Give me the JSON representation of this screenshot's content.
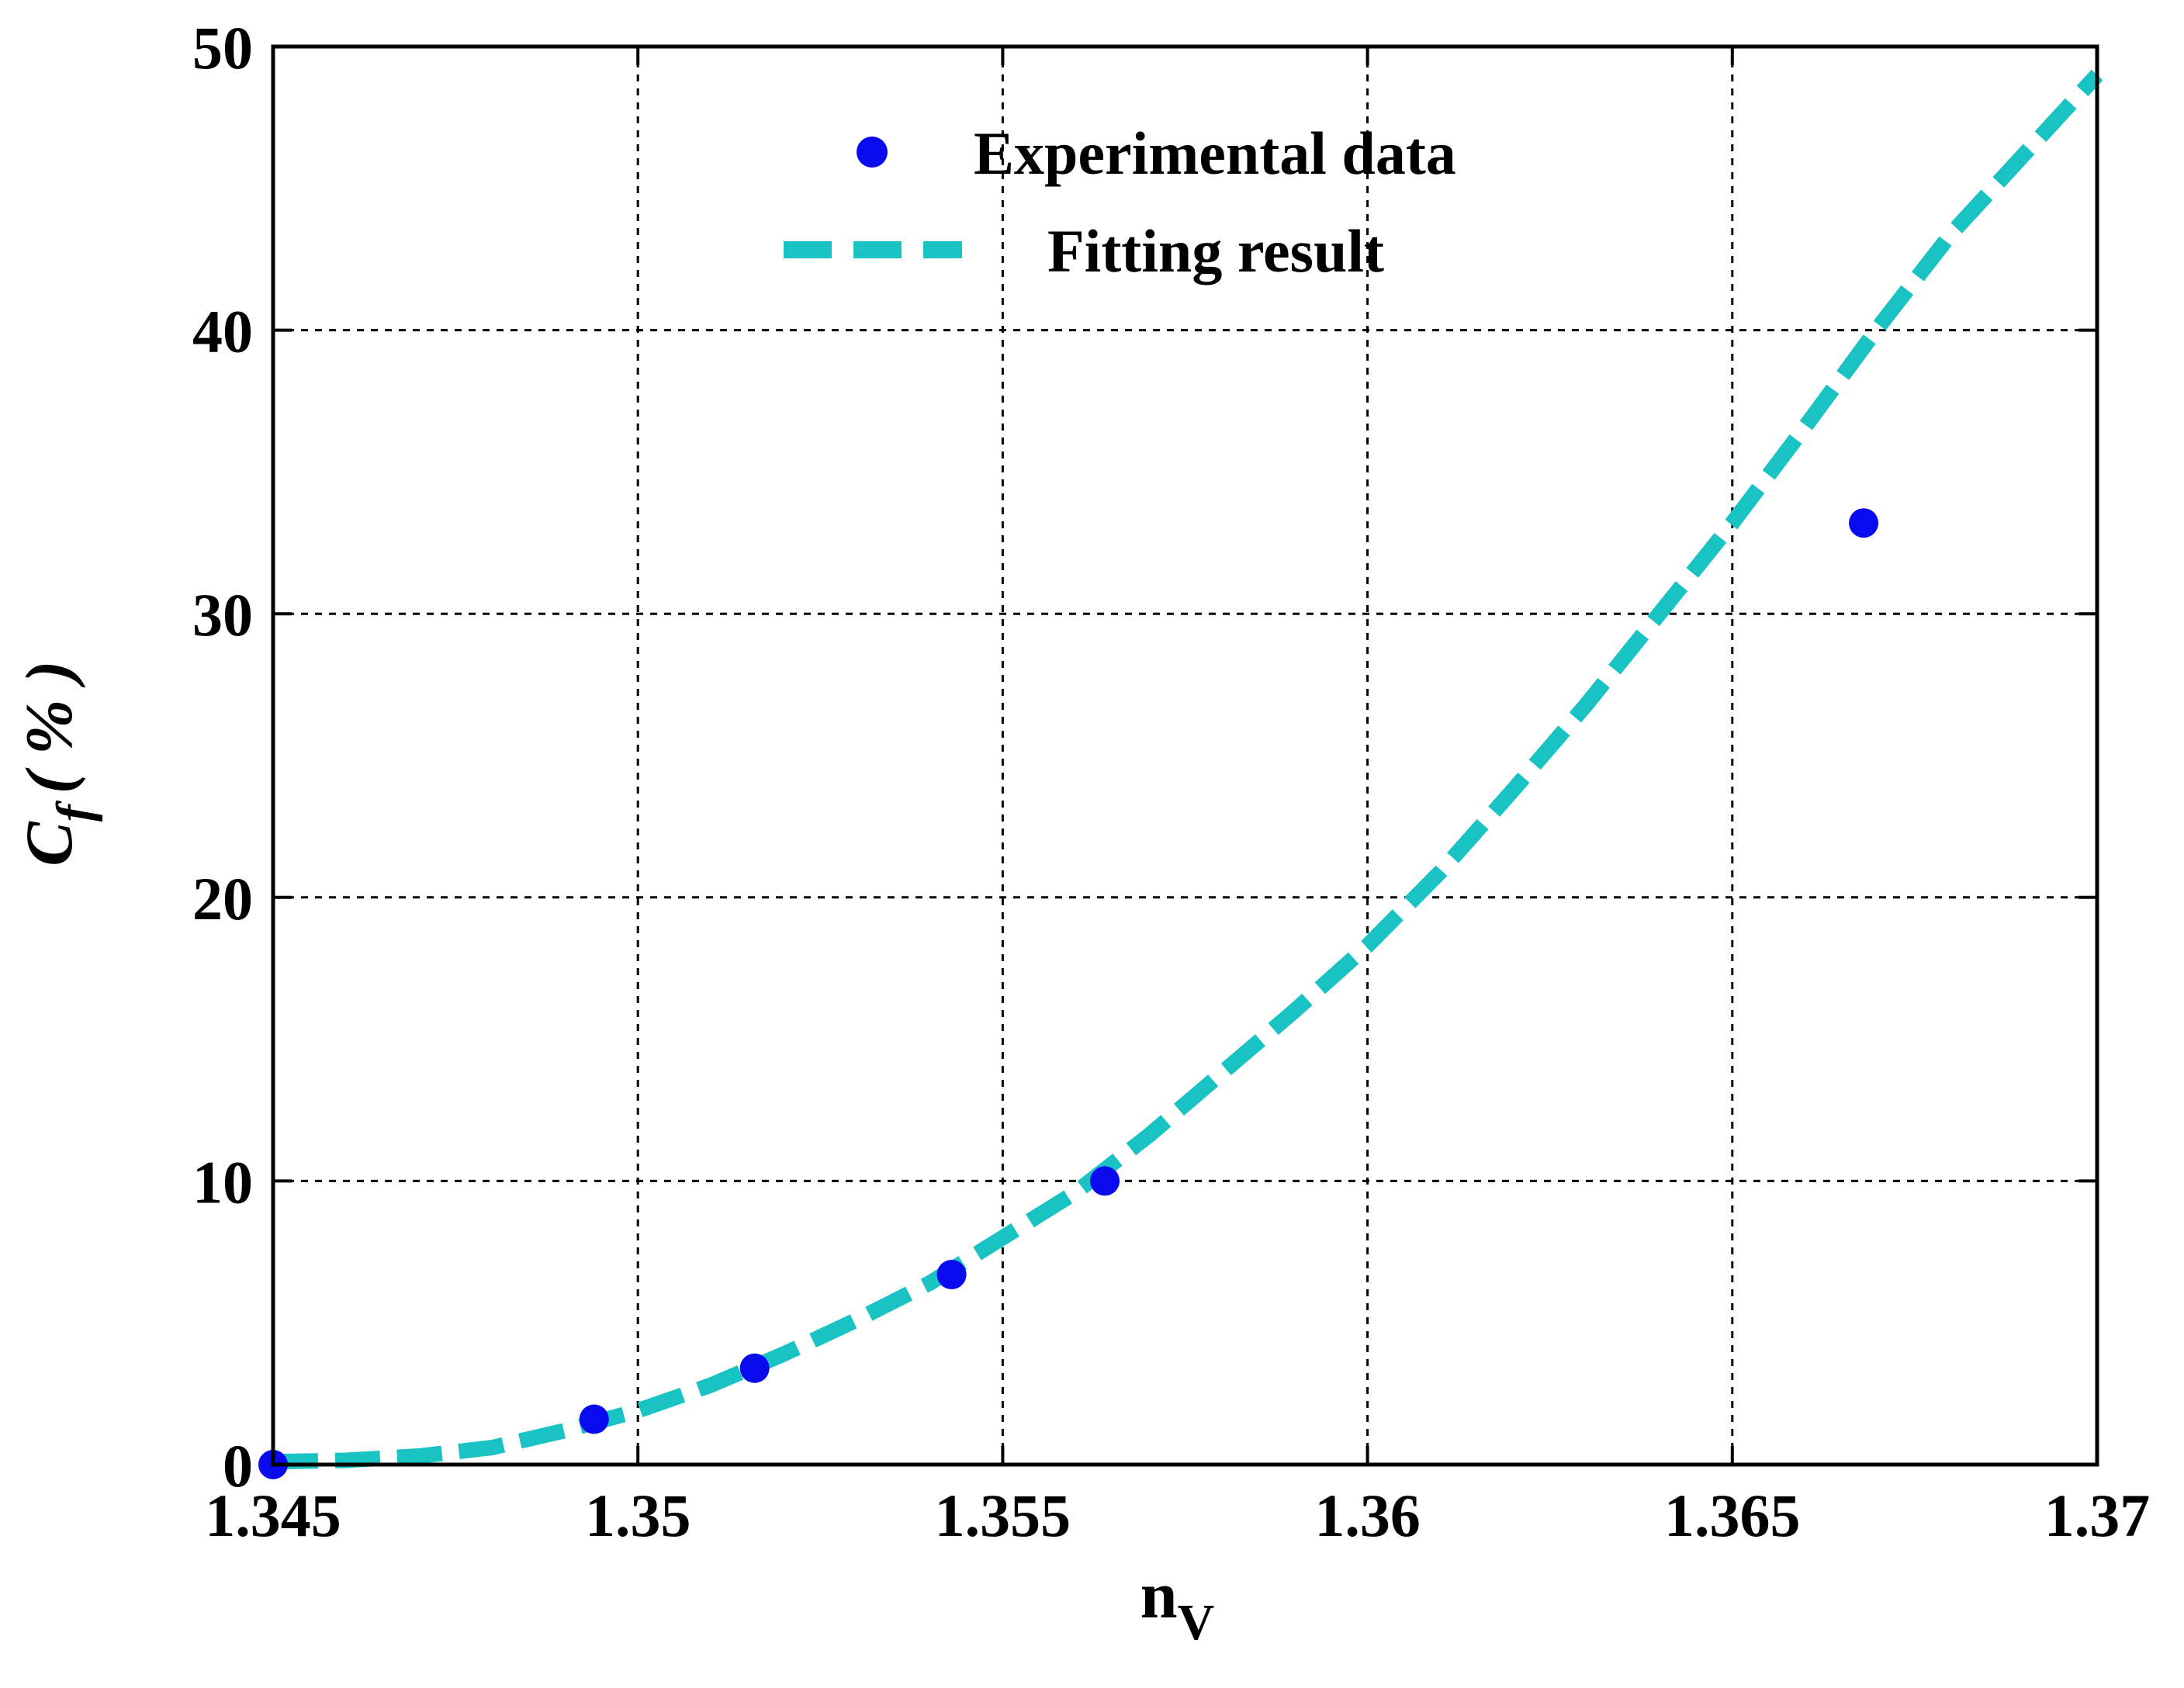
{
  "chart_data": {
    "type": "line",
    "title": "",
    "xlabel": {
      "main": "n",
      "sub": "V"
    },
    "ylabel": {
      "main": "C",
      "sub": "f",
      "unit": "( % )"
    },
    "xlim": [
      1.345,
      1.37
    ],
    "ylim": [
      0,
      50
    ],
    "xticks": [
      1.345,
      1.35,
      1.355,
      1.36,
      1.365,
      1.37
    ],
    "xtick_labels": [
      "1.345",
      "1.35",
      "1.355",
      "1.36",
      "1.365",
      "1.37"
    ],
    "yticks": [
      0,
      10,
      20,
      30,
      40,
      50
    ],
    "ytick_labels": [
      "0",
      "10",
      "20",
      "30",
      "40",
      "50"
    ],
    "grid": true,
    "legend_position": "top-center",
    "series": [
      {
        "name": "Experimental data",
        "style": "markers",
        "color": "#0a0aee",
        "x": [
          1.345,
          1.3494,
          1.3516,
          1.3543,
          1.3564,
          1.3668
        ],
        "y": [
          0,
          1.6,
          3.4,
          6.7,
          10.0,
          33.2
        ]
      },
      {
        "name": "Fitting result",
        "style": "dashed-line",
        "color": "#19c3c3",
        "x": [
          1.345,
          1.346,
          1.347,
          1.348,
          1.349,
          1.35,
          1.351,
          1.352,
          1.353,
          1.354,
          1.355,
          1.356,
          1.357,
          1.358,
          1.359,
          1.36,
          1.361,
          1.362,
          1.363,
          1.364,
          1.365,
          1.366,
          1.367,
          1.368,
          1.369,
          1.37
        ],
        "y": [
          0.1,
          0.15,
          0.3,
          0.6,
          1.2,
          1.9,
          2.8,
          3.9,
          5.1,
          6.4,
          8.0,
          9.6,
          11.6,
          13.8,
          16.0,
          18.3,
          20.9,
          23.8,
          26.8,
          30.0,
          33.2,
          36.6,
          40.1,
          43.4,
          46.2,
          49.0
        ]
      }
    ]
  }
}
